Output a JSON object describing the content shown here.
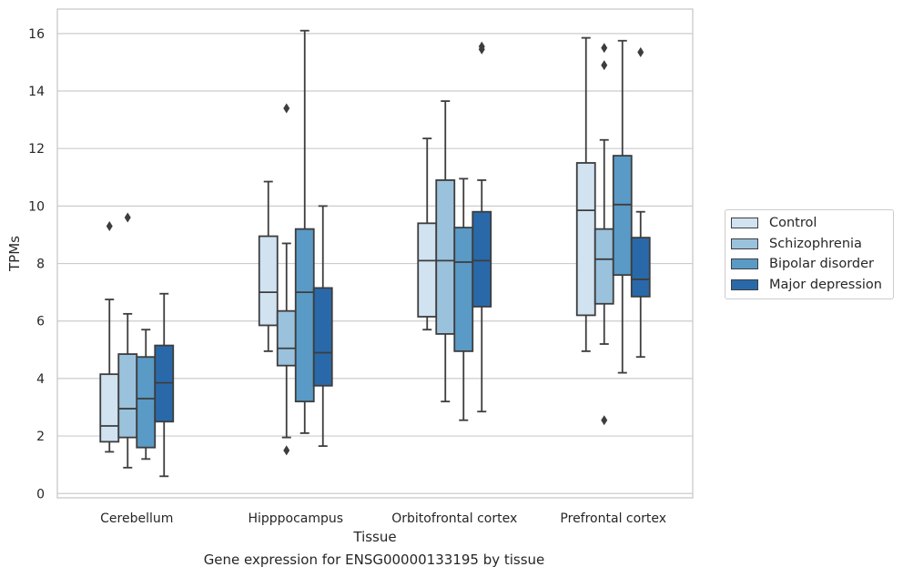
{
  "chart_data": {
    "type": "box",
    "xlabel": "Tissue",
    "ylabel": "TPMs",
    "caption": "Gene expression for ENSG00000133195 by tissue",
    "ylim": [
      -0.15,
      16.85
    ],
    "yticks": [
      0,
      2,
      4,
      6,
      8,
      10,
      12,
      14,
      16
    ],
    "grid": "horizontal",
    "legend_position": "right",
    "categories": [
      "Cerebellum",
      "Hipppocampus",
      "Orbitofrontal cortex",
      "Prefrontal cortex"
    ],
    "series": [
      {
        "name": "Control",
        "color": "#d1e2f1",
        "boxes": [
          {
            "whislo": 1.45,
            "q1": 1.8,
            "med": 2.35,
            "q3": 4.15,
            "whishi": 6.75,
            "fliers": [
              9.3
            ]
          },
          {
            "whislo": 4.95,
            "q1": 5.85,
            "med": 7.0,
            "q3": 8.95,
            "whishi": 10.85,
            "fliers": []
          },
          {
            "whislo": 5.7,
            "q1": 6.15,
            "med": 8.1,
            "q3": 9.4,
            "whishi": 12.35,
            "fliers": []
          },
          {
            "whislo": 4.95,
            "q1": 6.2,
            "med": 9.85,
            "q3": 11.5,
            "whishi": 15.85,
            "fliers": []
          }
        ]
      },
      {
        "name": "Schizophrenia",
        "color": "#9ac2dd",
        "boxes": [
          {
            "whislo": 0.9,
            "q1": 1.95,
            "med": 2.95,
            "q3": 4.85,
            "whishi": 6.25,
            "fliers": [
              9.6
            ]
          },
          {
            "whislo": 1.95,
            "q1": 4.45,
            "med": 5.05,
            "q3": 6.35,
            "whishi": 8.7,
            "fliers": [
              13.4,
              1.5
            ]
          },
          {
            "whislo": 3.2,
            "q1": 5.55,
            "med": 8.1,
            "q3": 10.9,
            "whishi": 13.65,
            "fliers": []
          },
          {
            "whislo": 5.2,
            "q1": 6.6,
            "med": 8.15,
            "q3": 9.2,
            "whishi": 12.3,
            "fliers": [
              15.5,
              14.9,
              2.55
            ]
          }
        ]
      },
      {
        "name": "Bipolar disorder",
        "color": "#5a9ac6",
        "boxes": [
          {
            "whislo": 1.2,
            "q1": 1.6,
            "med": 3.3,
            "q3": 4.75,
            "whishi": 5.7,
            "fliers": []
          },
          {
            "whislo": 2.1,
            "q1": 3.2,
            "med": 7.0,
            "q3": 9.2,
            "whishi": 16.1,
            "fliers": []
          },
          {
            "whislo": 2.55,
            "q1": 4.95,
            "med": 8.05,
            "q3": 9.25,
            "whishi": 10.95,
            "fliers": []
          },
          {
            "whislo": 4.2,
            "q1": 7.6,
            "med": 10.05,
            "q3": 11.75,
            "whishi": 15.75,
            "fliers": []
          }
        ]
      },
      {
        "name": "Major depression",
        "color": "#2a69a9",
        "boxes": [
          {
            "whislo": 0.6,
            "q1": 2.5,
            "med": 3.85,
            "q3": 5.15,
            "whishi": 6.95,
            "fliers": []
          },
          {
            "whislo": 1.65,
            "q1": 3.75,
            "med": 4.9,
            "q3": 7.15,
            "whishi": 10.0,
            "fliers": []
          },
          {
            "whislo": 2.85,
            "q1": 6.5,
            "med": 8.1,
            "q3": 9.8,
            "whishi": 10.9,
            "fliers": [
              15.55,
              15.45
            ]
          },
          {
            "whislo": 4.75,
            "q1": 6.85,
            "med": 7.45,
            "q3": 8.9,
            "whishi": 9.8,
            "fliers": [
              15.35
            ]
          }
        ]
      }
    ]
  }
}
